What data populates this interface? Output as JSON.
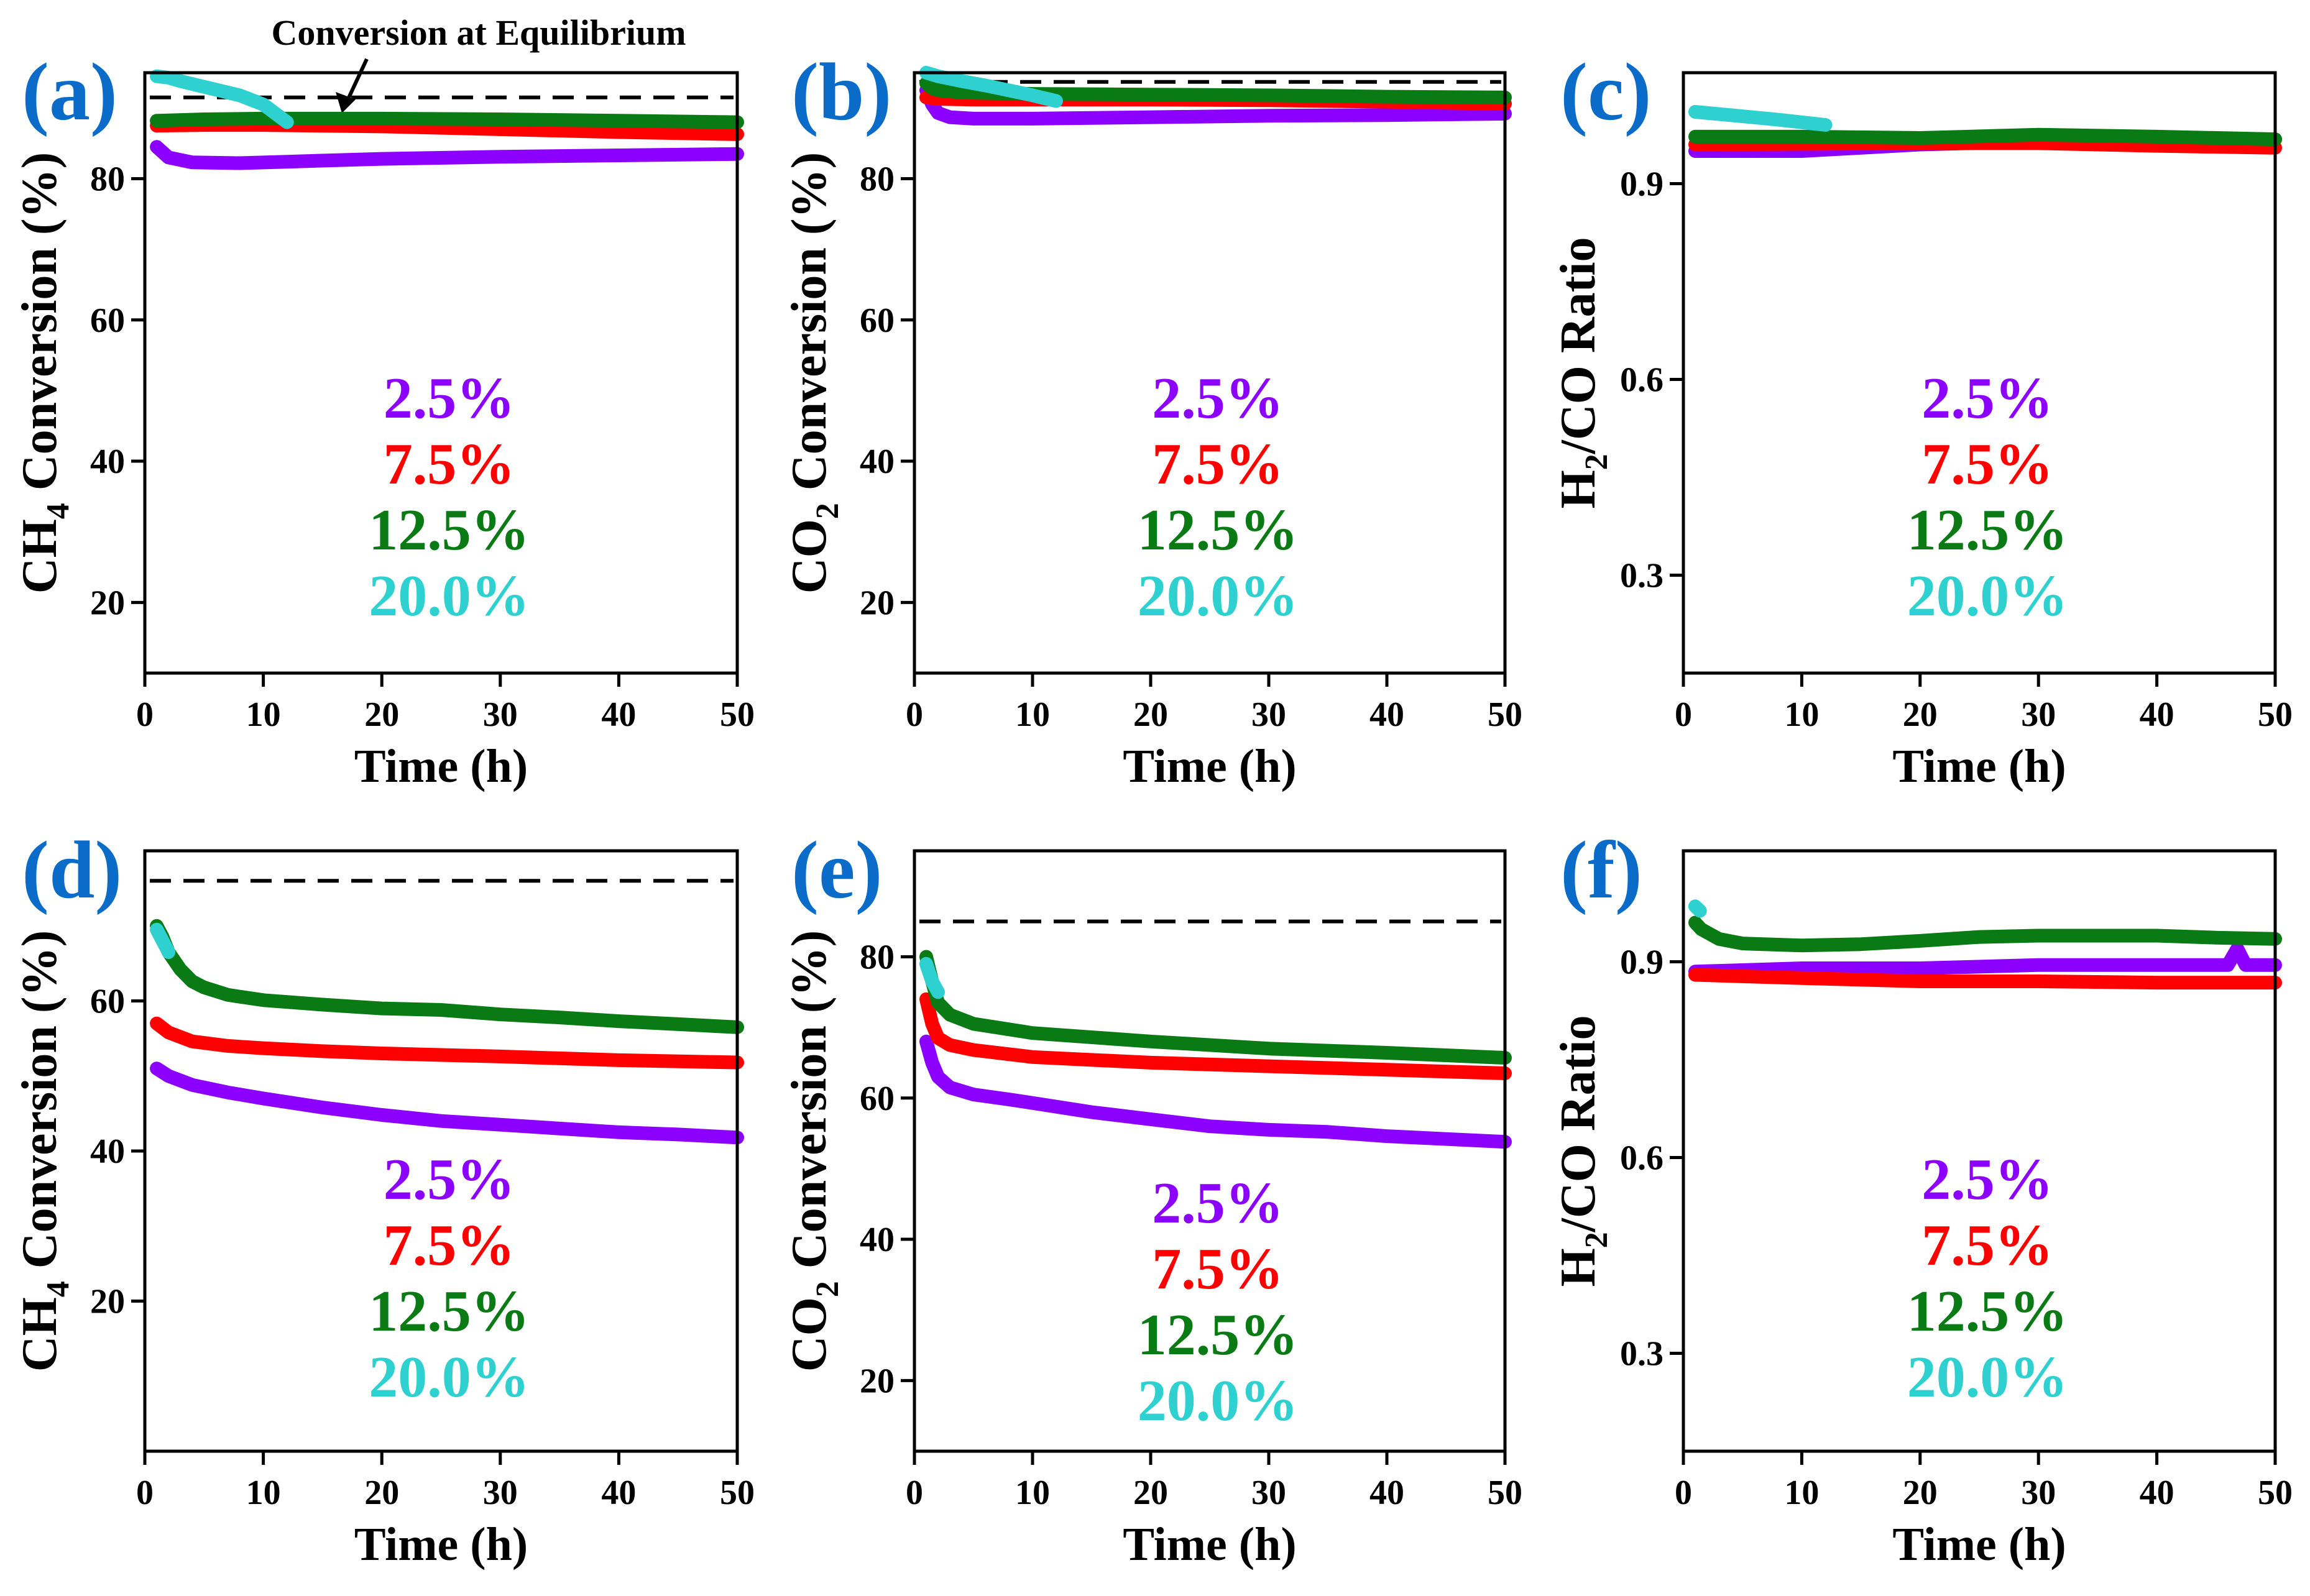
{
  "figure": {
    "top_annotation": "Conversion at Equilibrium",
    "legend_colors": [
      "#8B00FF",
      "#FF0000",
      "#0A7A14",
      "#2ED0D0"
    ],
    "panel_label_color": "#0A6CC8"
  },
  "chart_data": [
    {
      "id": "a",
      "type": "line",
      "panel_label": "(a)",
      "xlabel": "Time (h)",
      "ylabel": "CH4 Conversion (%)",
      "ylabel_main": "CH",
      "ylabel_sub": "4",
      "ylabel_rest": " Conversion (%)",
      "xlim": [
        0,
        50
      ],
      "ylim": [
        10,
        95
      ],
      "xticks": [
        "0",
        "10",
        "20",
        "30",
        "40",
        "50"
      ],
      "xtick_values": [
        0,
        10,
        20,
        30,
        40,
        50
      ],
      "yticks": [
        "20",
        "40",
        "60",
        "80"
      ],
      "ytick_values": [
        20,
        40,
        60,
        80
      ],
      "equilibrium": 91.5,
      "legend": [
        "2.5%",
        "7.5%",
        "12.5%",
        "20.0%"
      ],
      "series": [
        {
          "name": "2.5%",
          "color": "#8B00FF",
          "x": [
            1,
            2,
            4,
            8,
            12,
            20,
            30,
            40,
            50
          ],
          "y": [
            84.5,
            83,
            82.3,
            82.2,
            82.4,
            82.8,
            83.1,
            83.3,
            83.5
          ]
        },
        {
          "name": "7.5%",
          "color": "#FF0000",
          "x": [
            1,
            5,
            10,
            20,
            30,
            40,
            50
          ],
          "y": [
            87.5,
            87.6,
            87.6,
            87.4,
            87,
            86.6,
            86.3
          ]
        },
        {
          "name": "12.5%",
          "color": "#0A7A14",
          "x": [
            1,
            5,
            10,
            20,
            30,
            40,
            50
          ],
          "y": [
            88.2,
            88.4,
            88.5,
            88.5,
            88.4,
            88.2,
            88
          ]
        },
        {
          "name": "20.0%",
          "color": "#2ED0D0",
          "x": [
            1,
            2,
            3,
            5,
            8,
            10,
            12
          ],
          "y": [
            94.5,
            94.3,
            93.8,
            93,
            91.8,
            90.5,
            88
          ]
        }
      ]
    },
    {
      "id": "b",
      "type": "line",
      "panel_label": "(b)",
      "xlabel": "Time (h)",
      "ylabel": "CO2 Conversion (%)",
      "ylabel_main": "CO",
      "ylabel_sub": "2",
      "ylabel_rest": " Conversion (%)",
      "xlim": [
        0,
        50
      ],
      "ylim": [
        10,
        95
      ],
      "xticks": [
        "0",
        "10",
        "20",
        "30",
        "40",
        "50"
      ],
      "xtick_values": [
        0,
        10,
        20,
        30,
        40,
        50
      ],
      "yticks": [
        "20",
        "40",
        "60",
        "80"
      ],
      "ytick_values": [
        20,
        40,
        60,
        80
      ],
      "equilibrium": 93.7,
      "legend": [
        "2.5%",
        "7.5%",
        "12.5%",
        "20.0%"
      ],
      "series": [
        {
          "name": "2.5%",
          "color": "#8B00FF",
          "x": [
            1,
            1.5,
            2,
            3,
            5,
            10,
            20,
            30,
            40,
            50
          ],
          "y": [
            92.5,
            90.5,
            89.3,
            88.7,
            88.5,
            88.5,
            88.7,
            88.9,
            89,
            89.2
          ]
        },
        {
          "name": "7.5%",
          "color": "#FF0000",
          "x": [
            1,
            2,
            5,
            10,
            20,
            30,
            40,
            50
          ],
          "y": [
            91.5,
            91.3,
            91.2,
            91.2,
            91.2,
            91.1,
            90.9,
            90.6
          ]
        },
        {
          "name": "12.5%",
          "color": "#0A7A14",
          "x": [
            1,
            1.5,
            2,
            4,
            10,
            20,
            30,
            40,
            50
          ],
          "y": [
            93.5,
            92.8,
            92.5,
            92.2,
            92,
            91.9,
            91.8,
            91.6,
            91.5
          ]
        },
        {
          "name": "20.0%",
          "color": "#2ED0D0",
          "x": [
            1,
            2,
            4,
            6,
            8,
            10,
            12
          ],
          "y": [
            95,
            94.5,
            93.8,
            93.2,
            92.5,
            91.8,
            91
          ]
        }
      ]
    },
    {
      "id": "c",
      "type": "line",
      "panel_label": "(c)",
      "xlabel": "Time (h)",
      "ylabel": "H2/CO Ratio",
      "ylabel_main": "H",
      "ylabel_sub": "2",
      "ylabel_rest": "/CO Ratio",
      "xlim": [
        0,
        50
      ],
      "ylim": [
        0.15,
        1.07
      ],
      "xticks": [
        "0",
        "10",
        "20",
        "30",
        "40",
        "50"
      ],
      "xtick_values": [
        0,
        10,
        20,
        30,
        40,
        50
      ],
      "yticks": [
        "0.3",
        "0.6",
        "0.9"
      ],
      "ytick_values": [
        0.3,
        0.6,
        0.9
      ],
      "equilibrium": null,
      "legend": [
        "2.5%",
        "7.5%",
        "12.5%",
        "20.0%"
      ],
      "series": [
        {
          "name": "2.5%",
          "color": "#8B00FF",
          "x": [
            1,
            10,
            20,
            30,
            40,
            50
          ],
          "y": [
            0.95,
            0.95,
            0.96,
            0.965,
            0.97,
            0.968
          ]
        },
        {
          "name": "7.5%",
          "color": "#FF0000",
          "x": [
            1,
            10,
            20,
            30,
            40,
            50
          ],
          "y": [
            0.96,
            0.961,
            0.962,
            0.962,
            0.958,
            0.955
          ]
        },
        {
          "name": "12.5%",
          "color": "#0A7A14",
          "x": [
            1,
            10,
            20,
            30,
            40,
            50
          ],
          "y": [
            0.972,
            0.972,
            0.97,
            0.975,
            0.972,
            0.968
          ]
        },
        {
          "name": "20.0%",
          "color": "#2ED0D0",
          "x": [
            1,
            4,
            8,
            12
          ],
          "y": [
            1.01,
            1.005,
            0.998,
            0.99
          ]
        }
      ]
    },
    {
      "id": "d",
      "type": "line",
      "panel_label": "(d)",
      "xlabel": "Time (h)",
      "ylabel": "CH4 Conversion (%)",
      "ylabel_main": "CH",
      "ylabel_sub": "4",
      "ylabel_rest": " Conversion (%)",
      "xlim": [
        0,
        50
      ],
      "ylim": [
        0,
        80
      ],
      "xticks": [
        "0",
        "10",
        "20",
        "30",
        "40",
        "50"
      ],
      "xtick_values": [
        0,
        10,
        20,
        30,
        40,
        50
      ],
      "yticks": [
        "20",
        "40",
        "60"
      ],
      "ytick_values": [
        20,
        40,
        60
      ],
      "equilibrium": 76,
      "legend": [
        "2.5%",
        "7.5%",
        "12.5%",
        "20.0%"
      ],
      "series": [
        {
          "name": "2.5%",
          "color": "#8B00FF",
          "x": [
            1,
            2,
            4,
            7,
            10,
            15,
            20,
            25,
            30,
            35,
            40,
            45,
            50
          ],
          "y": [
            51,
            50,
            48.8,
            47.8,
            47,
            45.8,
            44.8,
            44,
            43.5,
            43,
            42.5,
            42.2,
            41.8
          ]
        },
        {
          "name": "7.5%",
          "color": "#FF0000",
          "x": [
            1,
            2,
            4,
            7,
            10,
            15,
            20,
            30,
            40,
            50
          ],
          "y": [
            57,
            55.8,
            54.6,
            54,
            53.7,
            53.3,
            53,
            52.6,
            52.1,
            51.8
          ]
        },
        {
          "name": "12.5%",
          "color": "#0A7A14",
          "x": [
            1,
            1.5,
            2,
            3,
            4,
            5,
            7,
            10,
            15,
            20,
            25,
            30,
            35,
            40,
            45,
            50
          ],
          "y": [
            70,
            68.5,
            66.5,
            64.2,
            62.6,
            61.8,
            60.8,
            60.1,
            59.5,
            59,
            58.8,
            58.2,
            57.8,
            57.3,
            56.9,
            56.5
          ]
        },
        {
          "name": "20.0%",
          "color": "#2ED0D0",
          "x": [
            1,
            1.5,
            2
          ],
          "y": [
            69.5,
            68,
            66.5
          ]
        }
      ]
    },
    {
      "id": "e",
      "type": "line",
      "panel_label": "(e)",
      "xlabel": "Time (h)",
      "ylabel": "CO2 Conversion (%)",
      "ylabel_main": "CO",
      "ylabel_sub": "2",
      "ylabel_rest": " Conversion (%)",
      "xlim": [
        0,
        50
      ],
      "ylim": [
        10,
        95
      ],
      "xticks": [
        "0",
        "10",
        "20",
        "30",
        "40",
        "50"
      ],
      "xtick_values": [
        0,
        10,
        20,
        30,
        40,
        50
      ],
      "yticks": [
        "20",
        "40",
        "60",
        "80"
      ],
      "ytick_values": [
        20,
        40,
        60,
        80
      ],
      "equilibrium": 85,
      "legend": [
        "2.5%",
        "7.5%",
        "12.5%",
        "20.0%"
      ],
      "series": [
        {
          "name": "2.5%",
          "color": "#8B00FF",
          "x": [
            1,
            1.5,
            2,
            3,
            5,
            8,
            10,
            15,
            20,
            25,
            30,
            35,
            40,
            45,
            50
          ],
          "y": [
            68,
            65,
            63,
            61.5,
            60.5,
            59.8,
            59.3,
            58,
            57,
            56,
            55.5,
            55.2,
            54.6,
            54.2,
            53.8
          ]
        },
        {
          "name": "7.5%",
          "color": "#FF0000",
          "x": [
            1,
            1.5,
            2,
            3,
            5,
            10,
            20,
            30,
            40,
            50
          ],
          "y": [
            74,
            70.5,
            68.5,
            67.5,
            66.8,
            65.8,
            65,
            64.5,
            64,
            63.5
          ]
        },
        {
          "name": "12.5%",
          "color": "#0A7A14",
          "x": [
            1,
            1.5,
            2,
            3,
            5,
            10,
            20,
            30,
            40,
            50
          ],
          "y": [
            80,
            76.5,
            73.5,
            71.8,
            70.5,
            69.2,
            68,
            67,
            66.4,
            65.7
          ]
        },
        {
          "name": "20.0%",
          "color": "#2ED0D0",
          "x": [
            1,
            1.5,
            2
          ],
          "y": [
            79,
            76.5,
            75
          ]
        }
      ]
    },
    {
      "id": "f",
      "type": "line",
      "panel_label": "(f)",
      "xlabel": "Time (h)",
      "ylabel": "H2/CO Ratio",
      "ylabel_main": "H",
      "ylabel_sub": "2",
      "ylabel_rest": "/CO Ratio",
      "xlim": [
        0,
        50
      ],
      "ylim": [
        0.15,
        1.07
      ],
      "xticks": [
        "0",
        "10",
        "20",
        "30",
        "40",
        "50"
      ],
      "xtick_values": [
        0,
        10,
        20,
        30,
        40,
        50
      ],
      "yticks": [
        "0.3",
        "0.6",
        "0.9"
      ],
      "ytick_values": [
        0.3,
        0.6,
        0.9
      ],
      "equilibrium": null,
      "legend": [
        "2.5%",
        "7.5%",
        "12.5%",
        "20.0%"
      ],
      "series": [
        {
          "name": "2.5%",
          "color": "#8B00FF",
          "x": [
            1,
            10,
            20,
            30,
            40,
            46,
            46.8,
            47.5,
            50
          ],
          "y": [
            0.885,
            0.89,
            0.89,
            0.895,
            0.895,
            0.895,
            0.92,
            0.895,
            0.895
          ]
        },
        {
          "name": "7.5%",
          "color": "#FF0000",
          "x": [
            1,
            10,
            20,
            30,
            40,
            50
          ],
          "y": [
            0.88,
            0.875,
            0.87,
            0.87,
            0.868,
            0.868
          ]
        },
        {
          "name": "12.5%",
          "color": "#0A7A14",
          "x": [
            1,
            1.5,
            2,
            3,
            5,
            10,
            15,
            20,
            25,
            30,
            35,
            40,
            45,
            50
          ],
          "y": [
            0.96,
            0.95,
            0.945,
            0.935,
            0.928,
            0.925,
            0.927,
            0.932,
            0.938,
            0.94,
            0.94,
            0.94,
            0.937,
            0.935
          ]
        },
        {
          "name": "20.0%",
          "color": "#2ED0D0",
          "x": [
            1,
            1.4
          ],
          "y": [
            0.985,
            0.978
          ]
        }
      ]
    }
  ]
}
